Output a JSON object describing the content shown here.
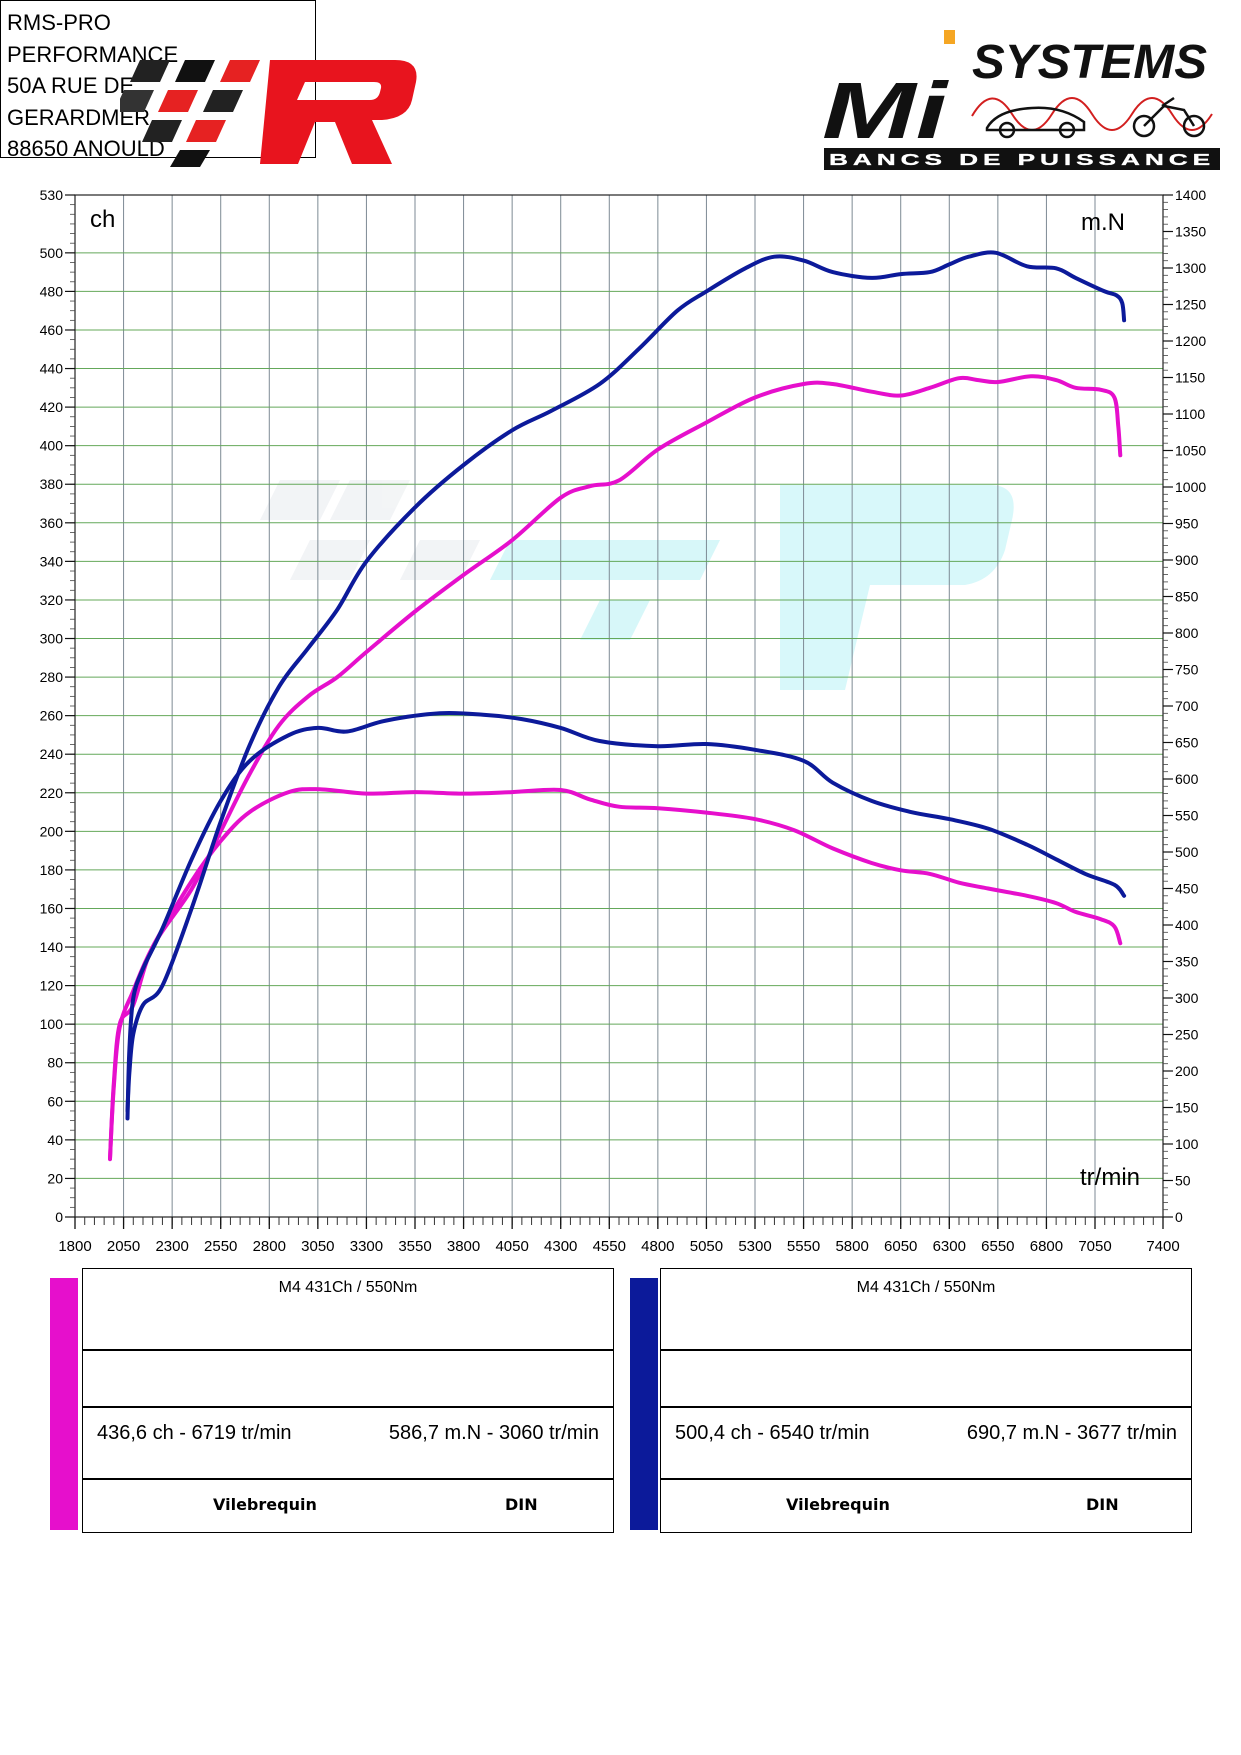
{
  "header": {
    "address_lines": [
      "RMS-PRO",
      "PERFORMANCE",
      "50A RUE DE",
      "GERARDMER",
      "88650 ANOULD"
    ],
    "right_logo_top": "SYSTEMS",
    "right_logo_letters": "Mi",
    "right_logo_bottom": "BANCS DE PUISSANCE"
  },
  "chart_data": {
    "type": "line",
    "xlabel": "tr/min",
    "ylabel_left": "ch",
    "ylabel_right": "m.N",
    "x_range": [
      1800,
      7400
    ],
    "y_left_range": [
      0,
      530
    ],
    "y_right_range": [
      0,
      1400
    ],
    "x_ticks": [
      1800,
      2050,
      2300,
      2550,
      2800,
      3050,
      3300,
      3550,
      3800,
      4050,
      4300,
      4550,
      4800,
      5050,
      5300,
      5550,
      5800,
      6050,
      6300,
      6550,
      6800,
      7050,
      7400
    ],
    "y_left_ticks": [
      0,
      20,
      40,
      60,
      80,
      100,
      120,
      140,
      160,
      180,
      200,
      220,
      240,
      260,
      280,
      300,
      320,
      340,
      360,
      380,
      400,
      420,
      440,
      460,
      480,
      500,
      530
    ],
    "y_right_ticks": [
      0,
      50,
      100,
      150,
      200,
      250,
      300,
      350,
      400,
      450,
      500,
      550,
      600,
      650,
      700,
      750,
      800,
      850,
      900,
      950,
      1000,
      1050,
      1100,
      1150,
      1200,
      1250,
      1300,
      1350,
      1400
    ],
    "grid": true,
    "series": [
      {
        "name": "M4 431Ch / 550Nm",
        "kind": "power",
        "color": "#e60fcc",
        "axis": "left",
        "x": [
          1980,
          2000,
          2030,
          2100,
          2200,
          2400,
          2550,
          2700,
          2850,
          3000,
          3150,
          3300,
          3550,
          3800,
          4050,
          4300,
          4450,
          4600,
          4800,
          5050,
          5300,
          5550,
          5700,
          5900,
          6050,
          6200,
          6350,
          6450,
          6550,
          6720,
          6850,
          6950,
          7080,
          7150,
          7170,
          7180
        ],
        "y": [
          30,
          70,
          100,
          110,
          140,
          170,
          200,
          230,
          255,
          270,
          280,
          293,
          314,
          333,
          351,
          373,
          379,
          382,
          398,
          412,
          425,
          432,
          432,
          428,
          426,
          430,
          435,
          434,
          433,
          436,
          434,
          430,
          429,
          425,
          410,
          395
        ]
      },
      {
        "name": "M4 431Ch / 550Nm",
        "kind": "torque",
        "color": "#e60fcc",
        "axis": "right",
        "x": [
          1980,
          2000,
          2030,
          2100,
          2200,
          2400,
          2550,
          2700,
          2900,
          3060,
          3300,
          3550,
          3800,
          4050,
          4300,
          4450,
          4600,
          4800,
          5050,
          5300,
          5500,
          5700,
          5900,
          6050,
          6200,
          6350,
          6500,
          6700,
          6850,
          6950,
          7080,
          7150,
          7180
        ],
        "y": [
          80,
          180,
          260,
          310,
          370,
          460,
          515,
          555,
          582,
          586,
          580,
          582,
          580,
          582,
          585,
          572,
          562,
          560,
          554,
          545,
          530,
          505,
          485,
          475,
          470,
          458,
          450,
          440,
          430,
          418,
          408,
          398,
          375
        ]
      },
      {
        "name": "M4 431Ch / 550Nm",
        "kind": "power",
        "color": "#0c1a9a",
        "axis": "left",
        "x": [
          2070,
          2080,
          2100,
          2150,
          2250,
          2400,
          2550,
          2700,
          2850,
          3000,
          3150,
          3300,
          3550,
          3800,
          4050,
          4250,
          4500,
          4700,
          4900,
          5050,
          5250,
          5400,
          5550,
          5700,
          5900,
          6050,
          6200,
          6300,
          6400,
          6540,
          6700,
          6850,
          6950,
          7100,
          7160,
          7190,
          7200
        ],
        "y": [
          55,
          75,
          95,
          110,
          120,
          160,
          205,
          245,
          275,
          295,
          315,
          340,
          368,
          390,
          408,
          418,
          432,
          450,
          470,
          480,
          492,
          498,
          496,
          490,
          487,
          489,
          490,
          494,
          498,
          500,
          493,
          492,
          487,
          480,
          478,
          474,
          465
        ]
      },
      {
        "name": "M4 431Ch / 550Nm",
        "kind": "torque",
        "color": "#0c1a9a",
        "axis": "right",
        "x": [
          2070,
          2080,
          2100,
          2150,
          2250,
          2400,
          2550,
          2700,
          2900,
          3050,
          3200,
          3400,
          3677,
          3900,
          4100,
          4300,
          4500,
          4800,
          5050,
          5300,
          5550,
          5700,
          5900,
          6100,
          6300,
          6500,
          6700,
          6850,
          7000,
          7150,
          7200
        ],
        "y": [
          135,
          230,
          300,
          340,
          395,
          490,
          570,
          625,
          660,
          670,
          665,
          680,
          690,
          688,
          682,
          670,
          652,
          645,
          648,
          640,
          625,
          595,
          570,
          555,
          545,
          532,
          510,
          490,
          470,
          455,
          440
        ]
      }
    ]
  },
  "tables": [
    {
      "color": "#e60fcc",
      "title": "M4 431Ch / 550Nm",
      "max_power": "436,6 ch - 6719 tr/min",
      "max_torque": "586,7 m.N - 3060 tr/min",
      "label_left": "Vilebrequin",
      "label_right": "DIN"
    },
    {
      "color": "#0c1a9a",
      "title": "M4 431Ch / 550Nm",
      "max_power": "500,4 ch - 6540 tr/min",
      "max_torque": "690,7 m.N - 3677 tr/min",
      "label_left": "Vilebrequin",
      "label_right": "DIN"
    }
  ]
}
